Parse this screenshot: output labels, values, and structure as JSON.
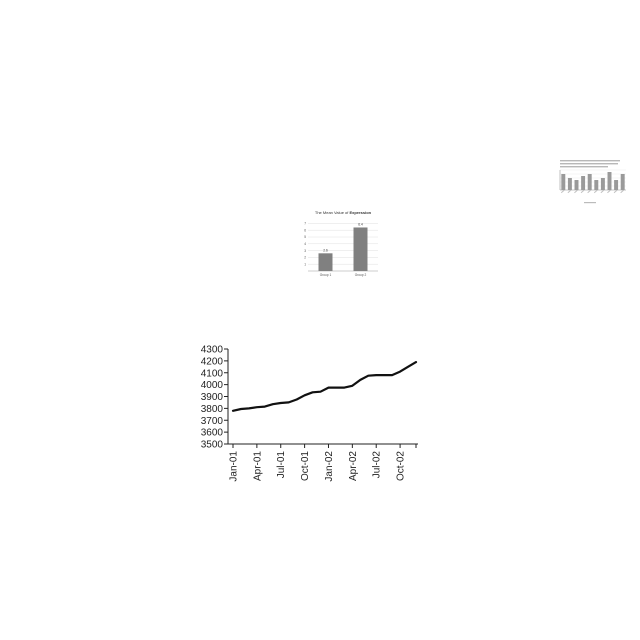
{
  "colors": {
    "line": "#111111",
    "axis": "#222222",
    "bar": "#808080",
    "bar_light": "#9a9a9a",
    "grid": "#d8d8d8",
    "text": "#333333"
  },
  "chart_data": [
    {
      "type": "bar",
      "note": "tiny thumbnail chart; printed title/labels are illegible and not reproduced",
      "values": [
        4,
        3,
        2.5,
        3.5,
        4,
        2.5,
        3,
        4.5,
        2.5,
        4
      ],
      "ylim": [
        0,
        5
      ],
      "grid": true
    },
    {
      "type": "bar",
      "title_prefix": "The Mean Value of ",
      "title_bold": "Expression",
      "categories": [
        "Group 1",
        "Group 2"
      ],
      "values": [
        2.6,
        6.4
      ],
      "data_labels": [
        "2.6",
        "6.4"
      ],
      "yticks": [
        "1",
        "2",
        "3",
        "4",
        "5",
        "6",
        "7"
      ],
      "ylim": [
        0,
        7.5
      ],
      "grid": true
    },
    {
      "type": "line",
      "x_tick_labels": [
        "Jan-01",
        "Apr-01",
        "Jul-01",
        "Oct-01",
        "Jan-02",
        "Apr-02",
        "Jul-02",
        "Oct-02"
      ],
      "y_ticks": [
        3500,
        3600,
        3700,
        3800,
        3900,
        4000,
        4100,
        4200,
        4300
      ],
      "ylim": [
        3500,
        4300
      ],
      "x": [
        "Jan-01",
        "Feb-01",
        "Mar-01",
        "Apr-01",
        "May-01",
        "Jun-01",
        "Jul-01",
        "Aug-01",
        "Sep-01",
        "Oct-01",
        "Nov-01",
        "Dec-01",
        "Jan-02",
        "Feb-02",
        "Mar-02",
        "Apr-02",
        "May-02",
        "Jun-02",
        "Jul-02",
        "Aug-02",
        "Sep-02",
        "Oct-02",
        "Nov-02",
        "Dec-02"
      ],
      "values": [
        3780,
        3795,
        3800,
        3810,
        3815,
        3835,
        3845,
        3850,
        3875,
        3910,
        3935,
        3940,
        3975,
        3975,
        3975,
        3990,
        4040,
        4075,
        4080,
        4080,
        4080,
        4110,
        4150,
        4190
      ],
      "grid": false,
      "legend": "none"
    }
  ]
}
